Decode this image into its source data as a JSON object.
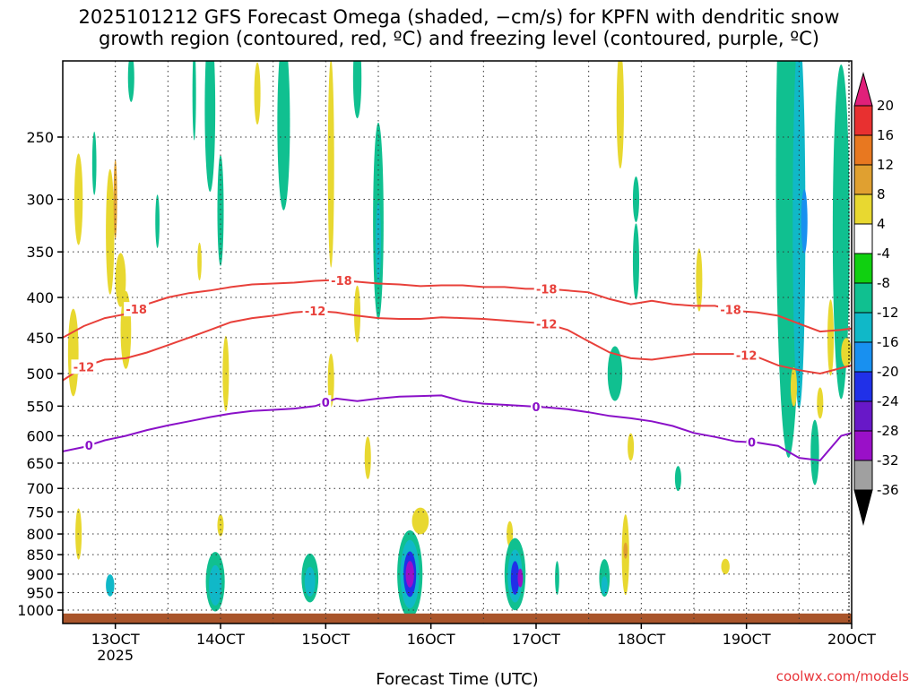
{
  "chart_data": {
    "type": "heatmap",
    "title_line1": "2025101212 GFS Forecast Omega (shaded, −cm/s) for KPFN with dendritic snow",
    "title_line2": "growth region (contoured, red, ºC) and freezing level (contoured, purple, ºC)",
    "xlabel": "Forecast Time (UTC)",
    "ylabel": "",
    "credit": "coolwx.com/models",
    "xlim": [
      12.5,
      20.0
    ],
    "ylim": [
      1040,
      200
    ],
    "x_ticks": [
      {
        "value": 13,
        "label": "13OCT",
        "sub": "2025"
      },
      {
        "value": 14,
        "label": "14OCT",
        "sub": ""
      },
      {
        "value": 15,
        "label": "15OCT",
        "sub": ""
      },
      {
        "value": 16,
        "label": "16OCT",
        "sub": ""
      },
      {
        "value": 17,
        "label": "17OCT",
        "sub": ""
      },
      {
        "value": 18,
        "label": "18OCT",
        "sub": ""
      },
      {
        "value": 19,
        "label": "19OCT",
        "sub": ""
      },
      {
        "value": 20,
        "label": "20OCT",
        "sub": ""
      }
    ],
    "y_ticks": [
      250,
      300,
      350,
      400,
      450,
      500,
      550,
      600,
      650,
      700,
      750,
      800,
      850,
      900,
      950,
      1000
    ],
    "grid": true,
    "colorbar": {
      "levels": [
        -36,
        -32,
        -28,
        -24,
        -20,
        -16,
        -12,
        -8,
        -4,
        4,
        8,
        12,
        16,
        20
      ],
      "colors": [
        "#000000",
        "#a0a0a0",
        "#9a10c8",
        "#6818c8",
        "#2030e8",
        "#1890f0",
        "#10b8c8",
        "#10c090",
        "#10d010",
        "#ffffff",
        "#e8d830",
        "#e0a030",
        "#e87820",
        "#e83030",
        "#e0207a"
      ],
      "units": "-cm/s"
    },
    "omega_cells": [
      {
        "t": 12.8,
        "p": 270,
        "hw": 0.02,
        "hp": 25,
        "val": -8
      },
      {
        "t": 12.65,
        "p": 300,
        "hw": 0.04,
        "hp": 40,
        "val": 6
      },
      {
        "t": 12.95,
        "p": 330,
        "hw": 0.04,
        "hp": 60,
        "val": 6
      },
      {
        "t": 13.0,
        "p": 300,
        "hw": 0.015,
        "hp": 35,
        "val": 10
      },
      {
        "t": 13.05,
        "p": 380,
        "hw": 0.05,
        "hp": 30,
        "val": 6
      },
      {
        "t": 13.1,
        "p": 440,
        "hw": 0.05,
        "hp": 50,
        "val": 6
      },
      {
        "t": 12.6,
        "p": 470,
        "hw": 0.05,
        "hp": 60,
        "val": 6
      },
      {
        "t": 12.65,
        "p": 800,
        "hw": 0.03,
        "hp": 60,
        "val": 6
      },
      {
        "t": 12.95,
        "p": 930,
        "hw": 0.04,
        "hp": 30,
        "val": -12
      },
      {
        "t": 13.15,
        "p": 210,
        "hw": 0.03,
        "hp": 15,
        "val": -8
      },
      {
        "t": 13.4,
        "p": 320,
        "hw": 0.02,
        "hp": 25,
        "val": -8
      },
      {
        "t": 13.75,
        "p": 220,
        "hw": 0.015,
        "hp": 30,
        "val": -8
      },
      {
        "t": 13.8,
        "p": 360,
        "hw": 0.02,
        "hp": 20,
        "val": 6
      },
      {
        "t": 13.9,
        "p": 230,
        "hw": 0.05,
        "hp": 55,
        "val": -8
      },
      {
        "t": 14.0,
        "p": 310,
        "hw": 0.03,
        "hp": 50,
        "val": -8
      },
      {
        "t": 14.05,
        "p": 500,
        "hw": 0.03,
        "hp": 55,
        "val": 6
      },
      {
        "t": 14.0,
        "p": 780,
        "hw": 0.03,
        "hp": 25,
        "val": 6
      },
      {
        "t": 13.95,
        "p": 920,
        "hw": 0.09,
        "hp": 80,
        "val": -8
      },
      {
        "t": 13.95,
        "p": 930,
        "hw": 0.06,
        "hp": 55,
        "val": -12
      },
      {
        "t": 14.6,
        "p": 240,
        "hw": 0.06,
        "hp": 60,
        "val": -8
      },
      {
        "t": 14.35,
        "p": 220,
        "hw": 0.03,
        "hp": 20,
        "val": 6
      },
      {
        "t": 15.05,
        "p": 270,
        "hw": 0.03,
        "hp": 80,
        "val": 6
      },
      {
        "t": 15.3,
        "p": 210,
        "hw": 0.04,
        "hp": 25,
        "val": -8
      },
      {
        "t": 15.05,
        "p": 510,
        "hw": 0.03,
        "hp": 40,
        "val": 6
      },
      {
        "t": 14.85,
        "p": 910,
        "hw": 0.08,
        "hp": 65,
        "val": -8
      },
      {
        "t": 14.85,
        "p": 920,
        "hw": 0.05,
        "hp": 40,
        "val": -12
      },
      {
        "t": 15.5,
        "p": 320,
        "hw": 0.05,
        "hp": 90,
        "val": -8
      },
      {
        "t": 15.5,
        "p": 340,
        "hw": 0.025,
        "hp": 40,
        "val": -12
      },
      {
        "t": 15.3,
        "p": 420,
        "hw": 0.03,
        "hp": 35,
        "val": 6
      },
      {
        "t": 15.4,
        "p": 640,
        "hw": 0.03,
        "hp": 40,
        "val": 6
      },
      {
        "t": 15.9,
        "p": 770,
        "hw": 0.08,
        "hp": 30,
        "val": 6
      },
      {
        "t": 15.8,
        "p": 900,
        "hw": 0.12,
        "hp": 115,
        "val": -8
      },
      {
        "t": 15.8,
        "p": 900,
        "hw": 0.09,
        "hp": 90,
        "val": -12
      },
      {
        "t": 15.8,
        "p": 900,
        "hw": 0.06,
        "hp": 60,
        "val": -20
      },
      {
        "t": 15.8,
        "p": 900,
        "hw": 0.04,
        "hp": 35,
        "val": -28
      },
      {
        "t": 16.75,
        "p": 800,
        "hw": 0.03,
        "hp": 30,
        "val": 6
      },
      {
        "t": 16.8,
        "p": 900,
        "hw": 0.1,
        "hp": 95,
        "val": -8
      },
      {
        "t": 16.8,
        "p": 905,
        "hw": 0.07,
        "hp": 70,
        "val": -12
      },
      {
        "t": 16.8,
        "p": 910,
        "hw": 0.04,
        "hp": 45,
        "val": -20
      },
      {
        "t": 16.85,
        "p": 910,
        "hw": 0.025,
        "hp": 25,
        "val": -28
      },
      {
        "t": 17.2,
        "p": 910,
        "hw": 0.02,
        "hp": 45,
        "val": -8
      },
      {
        "t": 17.8,
        "p": 230,
        "hw": 0.035,
        "hp": 40,
        "val": 6
      },
      {
        "t": 17.95,
        "p": 300,
        "hw": 0.03,
        "hp": 20,
        "val": -8
      },
      {
        "t": 17.95,
        "p": 360,
        "hw": 0.03,
        "hp": 40,
        "val": -8
      },
      {
        "t": 17.75,
        "p": 500,
        "hw": 0.07,
        "hp": 40,
        "val": -8
      },
      {
        "t": 17.9,
        "p": 620,
        "hw": 0.03,
        "hp": 25,
        "val": 6
      },
      {
        "t": 17.85,
        "p": 850,
        "hw": 0.035,
        "hp": 100,
        "val": 6
      },
      {
        "t": 17.85,
        "p": 840,
        "hw": 0.02,
        "hp": 20,
        "val": 12
      },
      {
        "t": 17.65,
        "p": 910,
        "hw": 0.05,
        "hp": 50,
        "val": -8
      },
      {
        "t": 17.65,
        "p": 930,
        "hw": 0.03,
        "hp": 25,
        "val": -12
      },
      {
        "t": 18.35,
        "p": 680,
        "hw": 0.03,
        "hp": 25,
        "val": -8
      },
      {
        "t": 18.8,
        "p": 880,
        "hw": 0.04,
        "hp": 20,
        "val": 6
      },
      {
        "t": 18.55,
        "p": 380,
        "hw": 0.03,
        "hp": 35,
        "val": 6
      },
      {
        "t": 19.4,
        "p": 280,
        "hw": 0.12,
        "hp": 190,
        "val": -8
      },
      {
        "t": 19.5,
        "p": 320,
        "hw": 0.06,
        "hp": 160,
        "val": -12
      },
      {
        "t": 19.55,
        "p": 320,
        "hw": 0.03,
        "hp": 30,
        "val": -16
      },
      {
        "t": 19.9,
        "p": 330,
        "hw": 0.08,
        "hp": 150,
        "val": -8
      },
      {
        "t": 19.8,
        "p": 450,
        "hw": 0.03,
        "hp": 50,
        "val": 6
      },
      {
        "t": 19.65,
        "p": 630,
        "hw": 0.04,
        "hp": 60,
        "val": -8
      },
      {
        "t": 19.45,
        "p": 520,
        "hw": 0.03,
        "hp": 30,
        "val": 6
      },
      {
        "t": 19.7,
        "p": 545,
        "hw": 0.03,
        "hp": 25,
        "val": 6
      },
      {
        "t": 19.95,
        "p": 470,
        "hw": 0.05,
        "hp": 20,
        "val": 6
      }
    ],
    "contours": [
      {
        "name": "dgz-top",
        "value": -18,
        "label": "-18",
        "color": "#e8403a",
        "x": [
          12.5,
          12.7,
          12.9,
          13.1,
          13.3,
          13.5,
          13.7,
          13.9,
          14.1,
          14.3,
          14.5,
          14.7,
          14.9,
          15.1,
          15.3,
          15.5,
          15.7,
          15.9,
          16.1,
          16.3,
          16.5,
          16.7,
          16.9,
          17.1,
          17.3,
          17.5,
          17.7,
          17.9,
          18.1,
          18.3,
          18.5,
          18.7,
          18.9,
          19.1,
          19.3,
          19.5,
          19.7,
          19.9,
          20.0
        ],
        "y": [
          450,
          435,
          425,
          420,
          408,
          400,
          395,
          392,
          388,
          385,
          384,
          383,
          381,
          380,
          382,
          384,
          385,
          387,
          386,
          386,
          388,
          388,
          390,
          390,
          392,
          394,
          402,
          408,
          404,
          408,
          410,
          410,
          416,
          418,
          422,
          432,
          442,
          440,
          438
        ],
        "labels": [
          13.2,
          15.15,
          17.1,
          18.85
        ]
      },
      {
        "name": "dgz-bottom",
        "value": -12,
        "label": "-12",
        "color": "#e8403a",
        "x": [
          12.5,
          12.7,
          12.9,
          13.1,
          13.3,
          13.5,
          13.7,
          13.9,
          14.1,
          14.3,
          14.5,
          14.7,
          14.9,
          15.1,
          15.3,
          15.5,
          15.7,
          15.9,
          16.1,
          16.3,
          16.5,
          16.7,
          16.9,
          17.1,
          17.3,
          17.5,
          17.7,
          17.9,
          18.1,
          18.3,
          18.5,
          18.7,
          18.9,
          19.1,
          19.3,
          19.5,
          19.7,
          19.9,
          20.0
        ],
        "y": [
          510,
          490,
          480,
          478,
          470,
          460,
          450,
          440,
          430,
          425,
          422,
          418,
          416,
          418,
          422,
          425,
          426,
          426,
          424,
          425,
          426,
          428,
          430,
          432,
          440,
          455,
          470,
          478,
          480,
          476,
          472,
          472,
          472,
          476,
          488,
          495,
          500,
          492,
          488
        ],
        "labels": [
          12.7,
          14.9,
          17.1,
          19.0
        ]
      },
      {
        "name": "freezing-level",
        "value": 0,
        "label": "0",
        "color": "#8a10c8",
        "x": [
          12.5,
          12.7,
          12.9,
          13.1,
          13.3,
          13.5,
          13.7,
          13.9,
          14.1,
          14.3,
          14.5,
          14.7,
          14.9,
          15.1,
          15.3,
          15.5,
          15.7,
          15.9,
          16.1,
          16.3,
          16.5,
          16.7,
          16.9,
          17.1,
          17.3,
          17.5,
          17.7,
          17.9,
          18.1,
          18.3,
          18.5,
          18.7,
          18.9,
          19.1,
          19.3,
          19.5,
          19.7,
          19.9,
          20.0
        ],
        "y": [
          628,
          620,
          608,
          600,
          590,
          582,
          575,
          568,
          562,
          558,
          556,
          554,
          550,
          538,
          542,
          538,
          535,
          534,
          533,
          542,
          546,
          548,
          550,
          552,
          555,
          560,
          566,
          570,
          575,
          583,
          595,
          602,
          610,
          612,
          618,
          640,
          645,
          600,
          595
        ],
        "labels": [
          12.75,
          15.0,
          17.0,
          19.05
        ]
      }
    ],
    "ground_level": 1010
  }
}
